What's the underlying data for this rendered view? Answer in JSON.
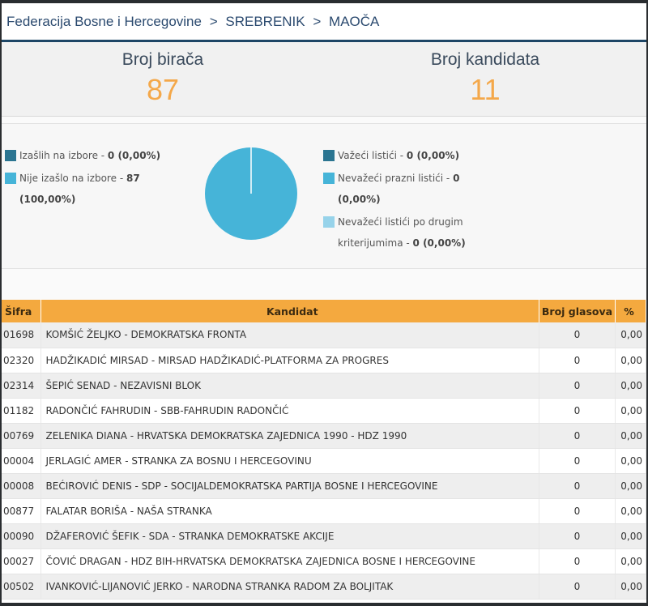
{
  "breadcrumb": [
    "Federacija Bosne i Hercegovine",
    ">",
    "SREBRENIK",
    ">",
    "MAOČA"
  ],
  "stats": {
    "voters_label": "Broj birača",
    "voters_value": "87",
    "candidates_label": "Broj kandidata",
    "candidates_value": "11"
  },
  "turnout": {
    "left": [
      {
        "label": "Izašlih na izbore",
        "value": "0 (0,00%)",
        "color": "#2b7591"
      },
      {
        "label": "Nije izašlo na izbore",
        "value": "87 (100,00%)",
        "color": "#46b4d8"
      }
    ],
    "right": [
      {
        "label": "Važeći listići",
        "value": "0 (0,00%)",
        "color": "#2b7591"
      },
      {
        "label": "Nevažeći prazni listići",
        "value": "0 (0,00%)",
        "color": "#46b4d8"
      },
      {
        "label": "Nevažeći listići po drugim kriterijumima",
        "value": "0 (0,00%)",
        "color": "#97d3ea"
      }
    ],
    "pie_fraction_turned_out": 0.0
  },
  "table": {
    "headers": {
      "code": "Šifra",
      "candidate": "Kandidat",
      "votes": "Broj glasova",
      "pct": "%"
    },
    "rows": [
      {
        "code": "01698",
        "candidate": "KOMŠIĆ ŽELJKO - DEMOKRATSKA FRONTA",
        "votes": "0",
        "pct": "0,00"
      },
      {
        "code": "02320",
        "candidate": "HADŽIKADIĆ MIRSAD - MIRSAD HADŽIKADIĆ-PLATFORMA ZA PROGRES",
        "votes": "0",
        "pct": "0,00"
      },
      {
        "code": "02314",
        "candidate": "ŠEPIĆ SENAD - NEZAVISNI BLOK",
        "votes": "0",
        "pct": "0,00"
      },
      {
        "code": "01182",
        "candidate": "RADONČIĆ FAHRUDIN - SBB-FAHRUDIN RADONČIĆ",
        "votes": "0",
        "pct": "0,00"
      },
      {
        "code": "00769",
        "candidate": "ZELENIKA DIANA - HRVATSKA DEMOKRATSKA ZAJEDNICA 1990 - HDZ 1990",
        "votes": "0",
        "pct": "0,00"
      },
      {
        "code": "00004",
        "candidate": "JERLAGIĆ AMER - STRANKA ZA BOSNU I HERCEGOVINU",
        "votes": "0",
        "pct": "0,00"
      },
      {
        "code": "00008",
        "candidate": "BEĆIROVIĆ DENIS - SDP - SOCIJALDEMOKRATSKA PARTIJA BOSNE I HERCEGOVINE",
        "votes": "0",
        "pct": "0,00"
      },
      {
        "code": "00877",
        "candidate": "FALATAR BORIŠA - NAŠA STRANKA",
        "votes": "0",
        "pct": "0,00"
      },
      {
        "code": "00090",
        "candidate": "DŽAFEROVIĆ ŠEFIK - SDA - STRANKA DEMOKRATSKE AKCIJE",
        "votes": "0",
        "pct": "0,00"
      },
      {
        "code": "00027",
        "candidate": "ČOVIĆ DRAGAN - HDZ BIH-HRVATSKA DEMOKRATSKA ZAJEDNICA BOSNE I HERCEGOVINE",
        "votes": "0",
        "pct": "0,00"
      },
      {
        "code": "00502",
        "candidate": "IVANKOVIĆ-LIJANOVIĆ JERKO - NARODNA STRANKA RADOM ZA BOLJITAK",
        "votes": "0",
        "pct": "0,00"
      }
    ]
  }
}
